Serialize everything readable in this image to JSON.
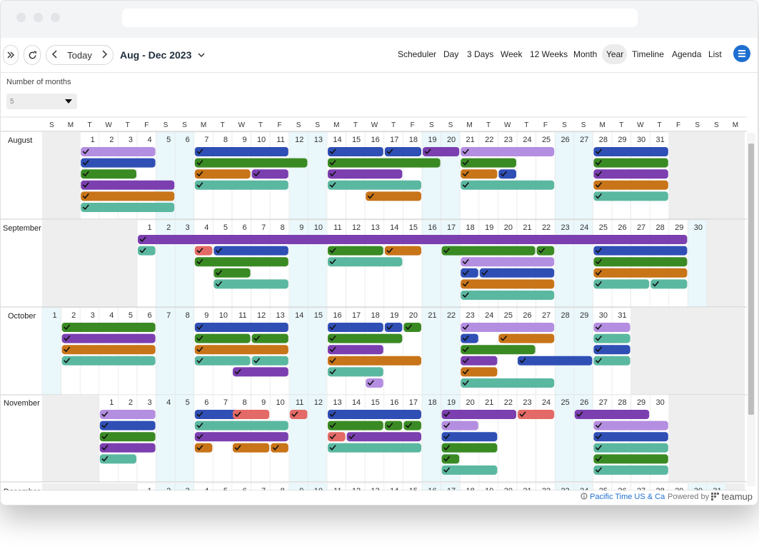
{
  "toolbar": {
    "expand_icon": "double-chevron-right-icon",
    "refresh_icon": "refresh-icon",
    "today_label": "Today",
    "date_range": "Aug - Dec 2023",
    "views": [
      "Scheduler",
      "Day",
      "3 Days",
      "Week",
      "12 Weeks",
      "Month",
      "Year",
      "Timeline",
      "Agenda",
      "List"
    ],
    "active_view": "Year"
  },
  "options": {
    "months_label": "Number of months",
    "months_value": "5"
  },
  "weekday_header": [
    "S",
    "M",
    "T",
    "W",
    "T",
    "F",
    "S",
    "S",
    "M",
    "T",
    "W",
    "T",
    "F",
    "S",
    "S",
    "M",
    "T",
    "W",
    "T",
    "F",
    "S",
    "S",
    "M",
    "T",
    "W",
    "T",
    "F",
    "S",
    "S",
    "M",
    "T",
    "W",
    "T",
    "F",
    "S",
    "S",
    "M"
  ],
  "months": [
    {
      "name": "August",
      "offset": 2,
      "days": 31
    },
    {
      "name": "September",
      "offset": 5,
      "days": 30
    },
    {
      "name": "October",
      "offset": 0,
      "days": 31
    },
    {
      "name": "November",
      "offset": 3,
      "days": 30
    },
    {
      "name": "December",
      "offset": 5,
      "days": 31
    }
  ],
  "colors": {
    "lavender": "#b48ee0",
    "blue": "#2f4fb5",
    "green": "#3a8a24",
    "purple": "#7b3fb0",
    "orange": "#c87418",
    "teal": "#5bb8a0",
    "red": "#e36a66",
    "weekend": "#eaf7fb",
    "outside": "#eeeeee"
  },
  "footer": {
    "timezone": "Pacific Time US & Ca",
    "powered_by": "Powered by",
    "brand": "teamup"
  }
}
